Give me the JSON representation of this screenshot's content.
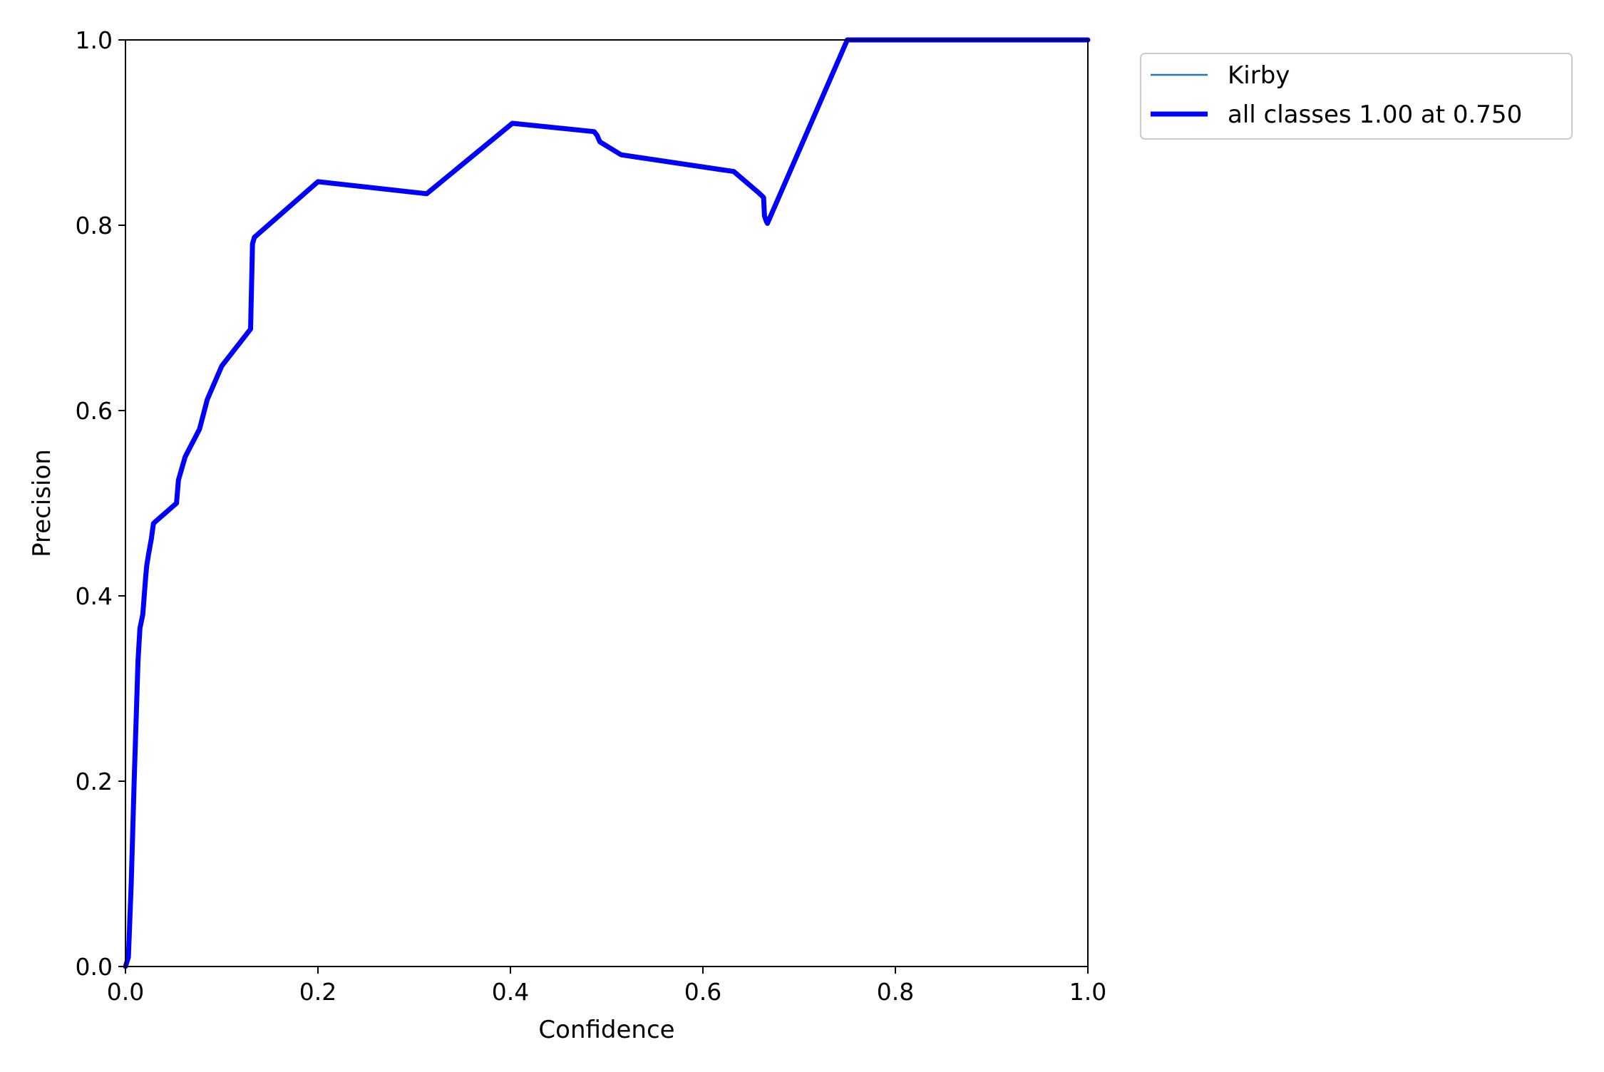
{
  "chart_data": {
    "type": "line",
    "title": "",
    "xlabel": "Confidence",
    "ylabel": "Precision",
    "xlim": [
      0.0,
      1.0
    ],
    "ylim": [
      0.0,
      1.0
    ],
    "grid": false,
    "legend_position": "outside-upper-right",
    "x_ticks": [
      "0.0",
      "0.2",
      "0.4",
      "0.6",
      "0.8",
      "1.0"
    ],
    "y_ticks": [
      "0.0",
      "0.2",
      "0.4",
      "0.6",
      "0.8",
      "1.0"
    ],
    "series": [
      {
        "name": "Kirby",
        "color": "#1f77b4",
        "line_weight": "thin",
        "x": [
          0.0,
          0.003,
          0.006,
          0.009,
          0.013,
          0.015,
          0.018,
          0.021,
          0.022,
          0.024,
          0.027,
          0.029,
          0.031,
          0.053,
          0.055,
          0.062,
          0.077,
          0.085,
          0.1,
          0.13,
          0.132,
          0.134,
          0.2,
          0.313,
          0.402,
          0.487,
          0.49,
          0.493,
          0.515,
          0.632,
          0.658,
          0.663,
          0.664,
          0.666,
          0.667,
          0.75,
          1.0
        ],
        "y": [
          0.0,
          0.01,
          0.09,
          0.2,
          0.33,
          0.365,
          0.38,
          0.42,
          0.432,
          0.445,
          0.462,
          0.478,
          0.48,
          0.5,
          0.525,
          0.55,
          0.58,
          0.612,
          0.648,
          0.688,
          0.78,
          0.787,
          0.847,
          0.834,
          0.91,
          0.901,
          0.897,
          0.89,
          0.876,
          0.858,
          0.835,
          0.83,
          0.81,
          0.804,
          0.802,
          1.0,
          1.0
        ]
      },
      {
        "name": "all classes 1.00 at 0.750",
        "color": "#0000ff",
        "line_weight": "thick",
        "x": [
          0.0,
          0.003,
          0.006,
          0.009,
          0.013,
          0.015,
          0.018,
          0.021,
          0.022,
          0.024,
          0.027,
          0.029,
          0.031,
          0.053,
          0.055,
          0.062,
          0.077,
          0.085,
          0.1,
          0.13,
          0.132,
          0.134,
          0.2,
          0.313,
          0.402,
          0.487,
          0.49,
          0.493,
          0.515,
          0.632,
          0.658,
          0.663,
          0.664,
          0.666,
          0.667,
          0.75,
          1.0
        ],
        "y": [
          0.0,
          0.01,
          0.09,
          0.2,
          0.33,
          0.365,
          0.38,
          0.42,
          0.432,
          0.445,
          0.462,
          0.478,
          0.48,
          0.5,
          0.525,
          0.55,
          0.58,
          0.612,
          0.648,
          0.688,
          0.78,
          0.787,
          0.847,
          0.834,
          0.91,
          0.901,
          0.897,
          0.89,
          0.876,
          0.858,
          0.835,
          0.83,
          0.81,
          0.804,
          0.802,
          1.0,
          1.0
        ]
      }
    ]
  }
}
